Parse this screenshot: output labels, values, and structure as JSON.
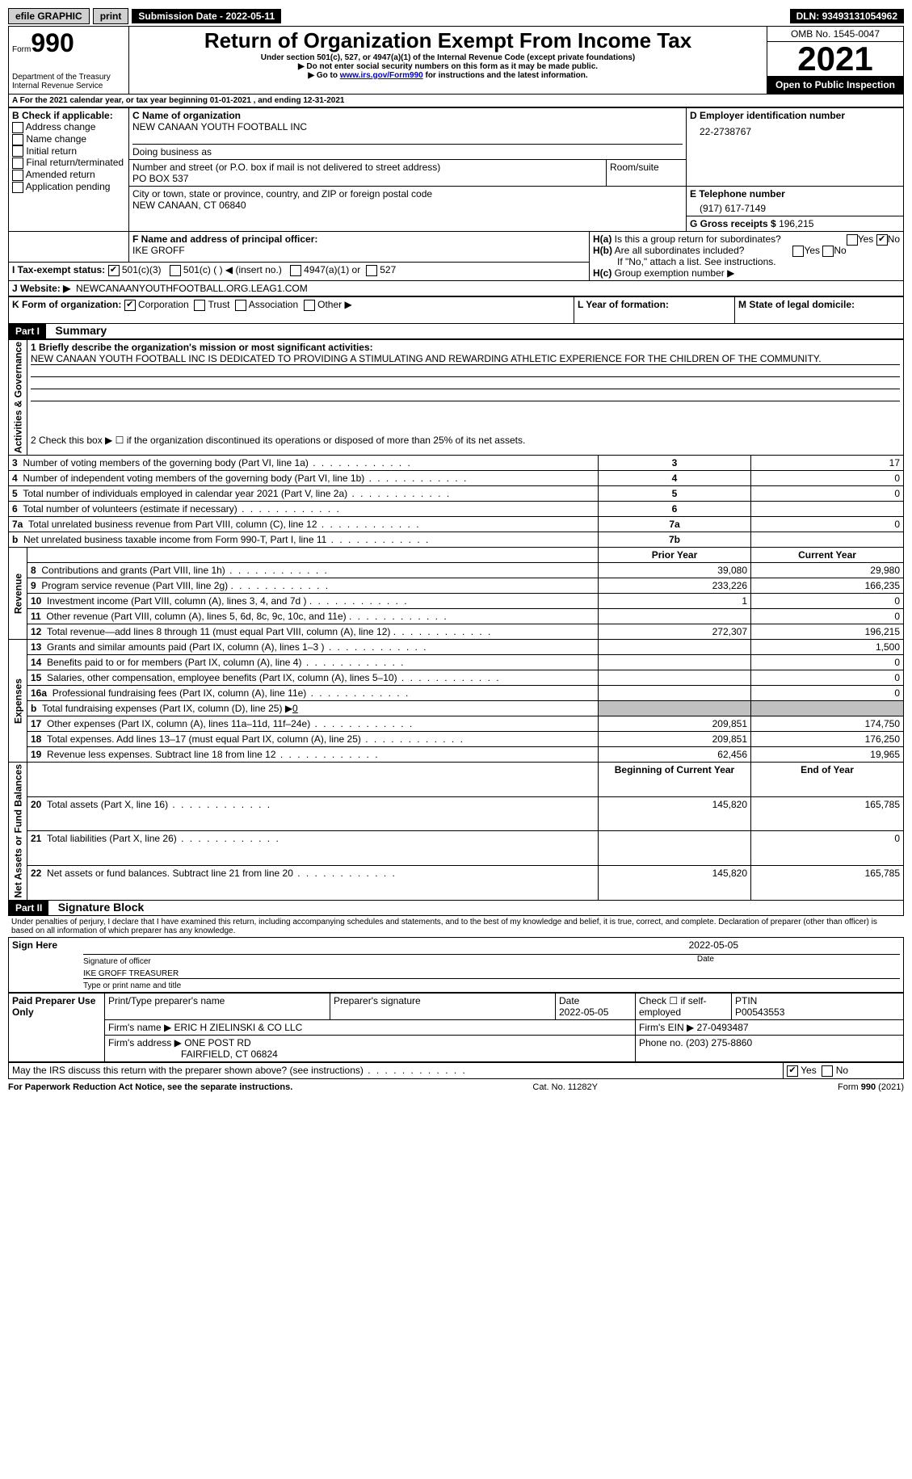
{
  "topbar": {
    "efile": "efile GRAPHIC",
    "print": "print",
    "subdate_label": "Submission Date - ",
    "subdate": "2022-05-11",
    "dln_label": "DLN: ",
    "dln": "93493131054962"
  },
  "header": {
    "form_word": "Form",
    "form_num": "990",
    "dept": "Department of the Treasury",
    "irs": "Internal Revenue Service",
    "title": "Return of Organization Exempt From Income Tax",
    "subtitle": "Under section 501(c), 527, or 4947(a)(1) of the Internal Revenue Code (except private foundations)",
    "note1": "▶ Do not enter social security numbers on this form as it may be made public.",
    "note2_pre": "▶ Go to ",
    "note2_link": "www.irs.gov/Form990",
    "note2_post": " for instructions and the latest information.",
    "omb": "OMB No. 1545-0047",
    "year": "2021",
    "inspection": "Open to Public Inspection"
  },
  "sectionA": {
    "a_line_pre": "A For the 2021 calendar year, or tax year beginning ",
    "a_begin": "01-01-2021",
    "a_mid": " , and ending ",
    "a_end": "12-31-2021",
    "b_label": "B Check if applicable:",
    "b_opts": [
      "Address change",
      "Name change",
      "Initial return",
      "Final return/terminated",
      "Amended return",
      "Application pending"
    ],
    "c_label": "C Name of organization",
    "c_name": "NEW CANAAN YOUTH FOOTBALL INC",
    "dba_label": "Doing business as",
    "addr_label": "Number and street (or P.O. box if mail is not delivered to street address)",
    "room_label": "Room/suite",
    "addr": "PO BOX 537",
    "city_label": "City or town, state or province, country, and ZIP or foreign postal code",
    "city": "NEW CANAAN, CT  06840",
    "d_label": "D Employer identification number",
    "d_ein": "22-2738767",
    "e_label": "E Telephone number",
    "e_phone": "(917) 617-7149",
    "g_label": "G Gross receipts $ ",
    "g_val": "196,215",
    "f_label": "F Name and address of principal officer:",
    "f_name": "IKE GROFF",
    "ha_label": "H(a)  Is this a group return for subordinates?",
    "hb_label": "H(b)  Are all subordinates included?",
    "h_note": "If \"No,\" attach a list. See instructions.",
    "hc_label": "H(c)  Group exemption number ▶",
    "yes": "Yes",
    "no": "No",
    "i_label": "I   Tax-exempt status:",
    "i_501c3": "501(c)(3)",
    "i_501c": "501(c) (  ) ◀ (insert no.)",
    "i_4947": "4947(a)(1) or",
    "i_527": "527",
    "j_label": "J   Website: ▶",
    "j_site": "NEWCANAANYOUTHFOOTBALL.ORG.LEAG1.COM",
    "k_label": "K Form of organization:",
    "k_opts": [
      "Corporation",
      "Trust",
      "Association",
      "Other ▶"
    ],
    "l_label": "L Year of formation:",
    "m_label": "M State of legal domicile:"
  },
  "part1": {
    "hdr": "Part I",
    "title": "Summary",
    "q1_label": "1  Briefly describe the organization's mission or most significant activities:",
    "q1_text": "NEW CANAAN YOUTH FOOTBALL INC IS DEDICATED TO PROVIDING A STIMULATING AND REWARDING ATHLETIC EXPERIENCE FOR THE CHILDREN OF THE COMMUNITY.",
    "q2": "2  Check this box ▶ ☐ if the organization discontinued its operations or disposed of more than 25% of its net assets.",
    "rows_gov": [
      {
        "n": "3",
        "t": "Number of voting members of the governing body (Part VI, line 1a)",
        "box": "3",
        "v": "17"
      },
      {
        "n": "4",
        "t": "Number of independent voting members of the governing body (Part VI, line 1b)",
        "box": "4",
        "v": "0"
      },
      {
        "n": "5",
        "t": "Total number of individuals employed in calendar year 2021 (Part V, line 2a)",
        "box": "5",
        "v": "0"
      },
      {
        "n": "6",
        "t": "Total number of volunteers (estimate if necessary)",
        "box": "6",
        "v": ""
      },
      {
        "n": "7a",
        "t": "Total unrelated business revenue from Part VIII, column (C), line 12",
        "box": "7a",
        "v": "0"
      },
      {
        "n": "b",
        "t": "Net unrelated business taxable income from Form 990-T, Part I, line 11",
        "box": "7b",
        "v": ""
      }
    ],
    "col_prior": "Prior Year",
    "col_current": "Current Year",
    "rows_rev": [
      {
        "n": "8",
        "t": "Contributions and grants (Part VIII, line 1h)",
        "p": "39,080",
        "c": "29,980"
      },
      {
        "n": "9",
        "t": "Program service revenue (Part VIII, line 2g)",
        "p": "233,226",
        "c": "166,235"
      },
      {
        "n": "10",
        "t": "Investment income (Part VIII, column (A), lines 3, 4, and 7d )",
        "p": "1",
        "c": "0"
      },
      {
        "n": "11",
        "t": "Other revenue (Part VIII, column (A), lines 5, 6d, 8c, 9c, 10c, and 11e)",
        "p": "",
        "c": "0"
      },
      {
        "n": "12",
        "t": "Total revenue—add lines 8 through 11 (must equal Part VIII, column (A), line 12)",
        "p": "272,307",
        "c": "196,215"
      }
    ],
    "rows_exp": [
      {
        "n": "13",
        "t": "Grants and similar amounts paid (Part IX, column (A), lines 1–3 )",
        "p": "",
        "c": "1,500"
      },
      {
        "n": "14",
        "t": "Benefits paid to or for members (Part IX, column (A), line 4)",
        "p": "",
        "c": "0"
      },
      {
        "n": "15",
        "t": "Salaries, other compensation, employee benefits (Part IX, column (A), lines 5–10)",
        "p": "",
        "c": "0"
      },
      {
        "n": "16a",
        "t": "Professional fundraising fees (Part IX, column (A), line 11e)",
        "p": "",
        "c": "0"
      },
      {
        "n": "b",
        "t": "Total fundraising expenses (Part IX, column (D), line 25) ▶",
        "p": "shade",
        "c": "shade",
        "extra": "0"
      },
      {
        "n": "17",
        "t": "Other expenses (Part IX, column (A), lines 11a–11d, 11f–24e)",
        "p": "209,851",
        "c": "174,750"
      },
      {
        "n": "18",
        "t": "Total expenses. Add lines 13–17 (must equal Part IX, column (A), line 25)",
        "p": "209,851",
        "c": "176,250"
      },
      {
        "n": "19",
        "t": "Revenue less expenses. Subtract line 18 from line 12",
        "p": "62,456",
        "c": "19,965"
      }
    ],
    "col_begin": "Beginning of Current Year",
    "col_end": "End of Year",
    "rows_net": [
      {
        "n": "20",
        "t": "Total assets (Part X, line 16)",
        "p": "145,820",
        "c": "165,785"
      },
      {
        "n": "21",
        "t": "Total liabilities (Part X, line 26)",
        "p": "",
        "c": "0"
      },
      {
        "n": "22",
        "t": "Net assets or fund balances. Subtract line 21 from line 20",
        "p": "145,820",
        "c": "165,785"
      }
    ],
    "vlabels": {
      "gov": "Activities & Governance",
      "rev": "Revenue",
      "exp": "Expenses",
      "net": "Net Assets or Fund Balances"
    }
  },
  "part2": {
    "hdr": "Part II",
    "title": "Signature Block",
    "decl": "Under penalties of perjury, I declare that I have examined this return, including accompanying schedules and statements, and to the best of my knowledge and belief, it is true, correct, and complete. Declaration of preparer (other than officer) is based on all information of which preparer has any knowledge.",
    "sign_here": "Sign Here",
    "sig_officer": "Signature of officer",
    "sig_date": "2022-05-05",
    "date_label": "Date",
    "officer_name": "IKE GROFF TREASURER",
    "type_name": "Type or print name and title",
    "paid": "Paid Preparer Use Only",
    "prep_name_label": "Print/Type preparer's name",
    "prep_sig_label": "Preparer's signature",
    "prep_date_label": "Date",
    "prep_date": "2022-05-05",
    "check_self": "Check ☐ if self-employed",
    "ptin_label": "PTIN",
    "ptin": "P00543553",
    "firm_name_label": "Firm's name    ▶ ",
    "firm_name": "ERIC H ZIELINSKI & CO LLC",
    "firm_ein_label": "Firm's EIN ▶ ",
    "firm_ein": "27-0493487",
    "firm_addr_label": "Firm's address ▶ ",
    "firm_addr1": "ONE POST RD",
    "firm_addr2": "FAIRFIELD, CT  06824",
    "firm_phone_label": "Phone no. ",
    "firm_phone": "(203) 275-8860",
    "discuss": "May the IRS discuss this return with the preparer shown above? (see instructions)"
  },
  "footer": {
    "pra": "For Paperwork Reduction Act Notice, see the separate instructions.",
    "cat": "Cat. No. 11282Y",
    "form": "Form 990 (2021)"
  }
}
